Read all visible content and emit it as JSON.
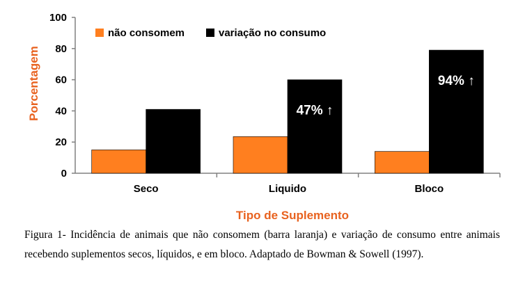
{
  "chart_data": {
    "type": "bar",
    "categories": [
      "Seco",
      "Liquido",
      "Bloco"
    ],
    "series": [
      {
        "name": "não consomem",
        "values": [
          15,
          23.5,
          14
        ],
        "color": "#ff7f1f"
      },
      {
        "name": "variação no consumo",
        "values": [
          41,
          60,
          79
        ],
        "color": "#000000"
      }
    ],
    "title": "",
    "xlabel": "Tipo de Suplemento",
    "ylabel": "Porcentagem",
    "ylim": [
      0,
      100
    ],
    "yticks": [
      "0",
      "20",
      "40",
      "60",
      "80",
      "100"
    ],
    "grid": false,
    "legend_position": "top-left",
    "annotations": [
      {
        "category": "Liquido",
        "text": "47% ↑"
      },
      {
        "category": "Bloco",
        "text": "94% ↑"
      }
    ]
  },
  "caption": "Figura 1-  Incidência de animais que não consomem (barra laranja) e variação de consumo entre animais recebendo suplementos secos, líquidos, e em bloco. Adaptado de Bowman & Sowell (1997)."
}
